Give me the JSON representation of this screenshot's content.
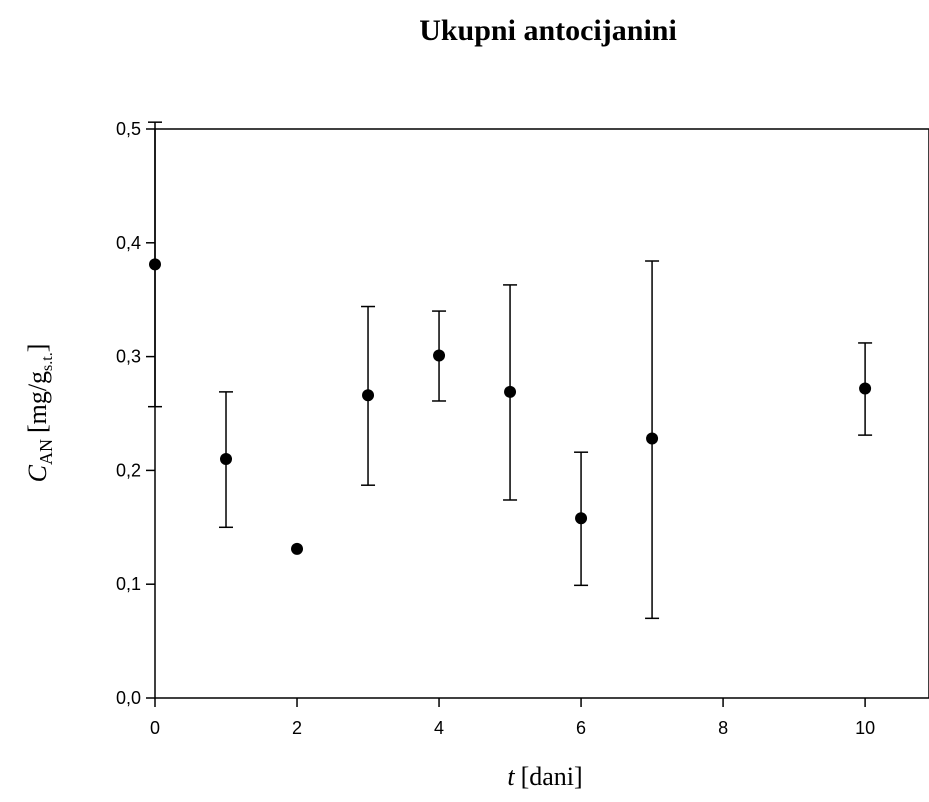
{
  "chart_data": {
    "type": "scatter",
    "title": "Ukupni antocijanini",
    "xlabel": {
      "main": "t",
      "rest": "[dani]"
    },
    "ylabel": {
      "main": "C",
      "main_sub": "AN",
      "rest": "[mg/g",
      "rest_sub": "s.t.",
      "close": "]"
    },
    "xlim": [
      0,
      10.9
    ],
    "ylim": [
      0.0,
      0.5
    ],
    "xticks": [
      {
        "value": 0,
        "label": "0"
      },
      {
        "value": 2,
        "label": "2"
      },
      {
        "value": 4,
        "label": "4"
      },
      {
        "value": 6,
        "label": "6"
      },
      {
        "value": 8,
        "label": "8"
      },
      {
        "value": 10,
        "label": "10"
      }
    ],
    "yticks": [
      {
        "value": 0.0,
        "label": "0,0"
      },
      {
        "value": 0.1,
        "label": "0,1"
      },
      {
        "value": 0.2,
        "label": "0,2"
      },
      {
        "value": 0.3,
        "label": "0,3"
      },
      {
        "value": 0.4,
        "label": "0,4"
      },
      {
        "value": 0.5,
        "label": "0,5"
      }
    ],
    "grid": false,
    "points": [
      {
        "x": 0,
        "y": 0.381,
        "err_low": 0.256,
        "err_high": 0.506
      },
      {
        "x": 1,
        "y": 0.21,
        "err_low": 0.15,
        "err_high": 0.269
      },
      {
        "x": 2,
        "y": 0.131,
        "err_low": null,
        "err_high": null
      },
      {
        "x": 3,
        "y": 0.266,
        "err_low": 0.187,
        "err_high": 0.344
      },
      {
        "x": 4,
        "y": 0.301,
        "err_low": 0.261,
        "err_high": 0.34
      },
      {
        "x": 5,
        "y": 0.269,
        "err_low": 0.174,
        "err_high": 0.363
      },
      {
        "x": 6,
        "y": 0.158,
        "err_low": 0.099,
        "err_high": 0.216
      },
      {
        "x": 7,
        "y": 0.228,
        "err_low": 0.07,
        "err_high": 0.384
      },
      {
        "x": 10,
        "y": 0.272,
        "err_low": 0.231,
        "err_high": 0.312
      }
    ],
    "colors": {
      "marker": "#000000",
      "axis": "#000000",
      "background": "#ffffff"
    }
  }
}
